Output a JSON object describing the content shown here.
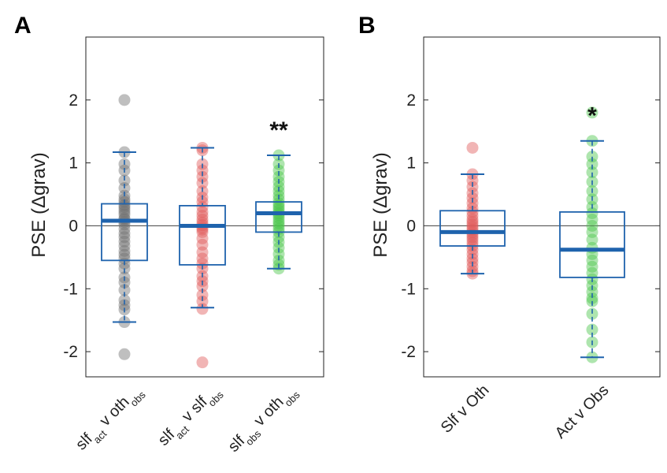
{
  "chart_data": [
    {
      "type": "box",
      "panel": "A",
      "ylabel": "PSE (Δgrav)",
      "ylim": [
        -2.4,
        3.0
      ],
      "yticks": [
        -2,
        -1,
        0,
        1,
        2
      ],
      "ytick_labels": [
        "-2",
        "-1",
        "0",
        "1",
        "2"
      ],
      "zero_line": true,
      "groups": [
        {
          "label_parts": [
            {
              "t": "slf",
              "sub": false
            },
            {
              "t": "act",
              "sub": true
            },
            {
              "t": " v oth",
              "sub": false
            },
            {
              "t": "obs",
              "sub": true
            }
          ],
          "point_color": "#707070",
          "median": 0.08,
          "q1": -0.55,
          "q3": 0.35,
          "whisker_low": -1.53,
          "whisker_high": 1.17,
          "significance": "",
          "points": [
            2.0,
            -2.04,
            1.17,
            0.98,
            0.88,
            0.72,
            0.6,
            0.48,
            0.42,
            0.38,
            0.33,
            0.3,
            0.26,
            0.22,
            0.18,
            0.12,
            0.1,
            0.06,
            0.02,
            -0.05,
            -0.12,
            -0.18,
            -0.25,
            -0.32,
            -0.4,
            -0.46,
            -0.52,
            -0.6,
            -0.68,
            -0.82,
            -0.9,
            -1.02,
            -1.18,
            -1.26,
            -1.33,
            -1.53
          ]
        },
        {
          "label_parts": [
            {
              "t": "slf",
              "sub": false
            },
            {
              "t": "act",
              "sub": true
            },
            {
              "t": " v slf",
              "sub": false
            },
            {
              "t": "obs",
              "sub": true
            }
          ],
          "point_color": "#e05a5a",
          "median": 0.0,
          "q1": -0.62,
          "q3": 0.32,
          "whisker_low": -1.3,
          "whisker_high": 1.24,
          "significance": "",
          "points": [
            1.24,
            1.2,
            0.98,
            0.88,
            0.78,
            0.68,
            0.55,
            0.45,
            0.38,
            0.3,
            0.22,
            0.16,
            0.1,
            0.05,
            0.01,
            -0.03,
            -0.06,
            -0.1,
            -0.2,
            -0.3,
            -0.42,
            -0.52,
            -0.6,
            -0.68,
            -0.8,
            -0.88,
            -0.96,
            -1.1,
            -1.2,
            -1.32,
            -2.17
          ]
        },
        {
          "label_parts": [
            {
              "t": "slf",
              "sub": false
            },
            {
              "t": "obs",
              "sub": true
            },
            {
              "t": " v oth",
              "sub": false
            },
            {
              "t": "obs",
              "sub": true
            }
          ],
          "point_color": "#4cc64c",
          "median": 0.2,
          "q1": -0.1,
          "q3": 0.38,
          "whisker_low": -0.68,
          "whisker_high": 1.12,
          "significance": "**",
          "points": [
            1.12,
            0.98,
            0.88,
            0.78,
            0.7,
            0.62,
            0.55,
            0.48,
            0.42,
            0.36,
            0.32,
            0.28,
            0.24,
            0.2,
            0.17,
            0.13,
            0.08,
            0.04,
            0.0,
            -0.05,
            -0.1,
            -0.18,
            -0.26,
            -0.35,
            -0.45,
            -0.55,
            -0.62,
            -0.68
          ]
        }
      ]
    },
    {
      "type": "box",
      "panel": "B",
      "ylabel": "PSE (Δgrav)",
      "ylim": [
        -2.4,
        3.0
      ],
      "yticks": [
        -2,
        -1,
        0,
        1,
        2
      ],
      "ytick_labels": [
        "-2",
        "-1",
        "0",
        "1",
        "2"
      ],
      "zero_line": true,
      "groups": [
        {
          "label_parts": [
            {
              "t": "Slf v Oth",
              "sub": false
            }
          ],
          "point_color": "#e05a5a",
          "median": -0.1,
          "q1": -0.32,
          "q3": 0.24,
          "whisker_low": -0.76,
          "whisker_high": 0.82,
          "significance": "",
          "points": [
            1.24,
            0.82,
            0.72,
            0.62,
            0.52,
            0.44,
            0.36,
            0.28,
            0.22,
            0.16,
            0.1,
            0.06,
            0.02,
            -0.02,
            -0.06,
            -0.1,
            -0.14,
            -0.18,
            -0.22,
            -0.27,
            -0.32,
            -0.38,
            -0.45,
            -0.52,
            -0.58,
            -0.65,
            -0.72,
            -0.76
          ]
        },
        {
          "label_parts": [
            {
              "t": "Act v Obs",
              "sub": false
            }
          ],
          "point_color": "#4cc64c",
          "median": -0.38,
          "q1": -0.82,
          "q3": 0.22,
          "whisker_low": -2.09,
          "whisker_high": 1.35,
          "significance": "*",
          "points": [
            1.8,
            1.35,
            1.1,
            0.98,
            0.85,
            0.7,
            0.55,
            0.42,
            0.3,
            0.2,
            0.1,
            0.0,
            -0.1,
            -0.22,
            -0.35,
            -0.45,
            -0.55,
            -0.65,
            -0.75,
            -0.85,
            -0.95,
            -1.05,
            -1.15,
            -1.2,
            -1.4,
            -1.65,
            -1.85,
            -2.09
          ]
        }
      ]
    }
  ]
}
